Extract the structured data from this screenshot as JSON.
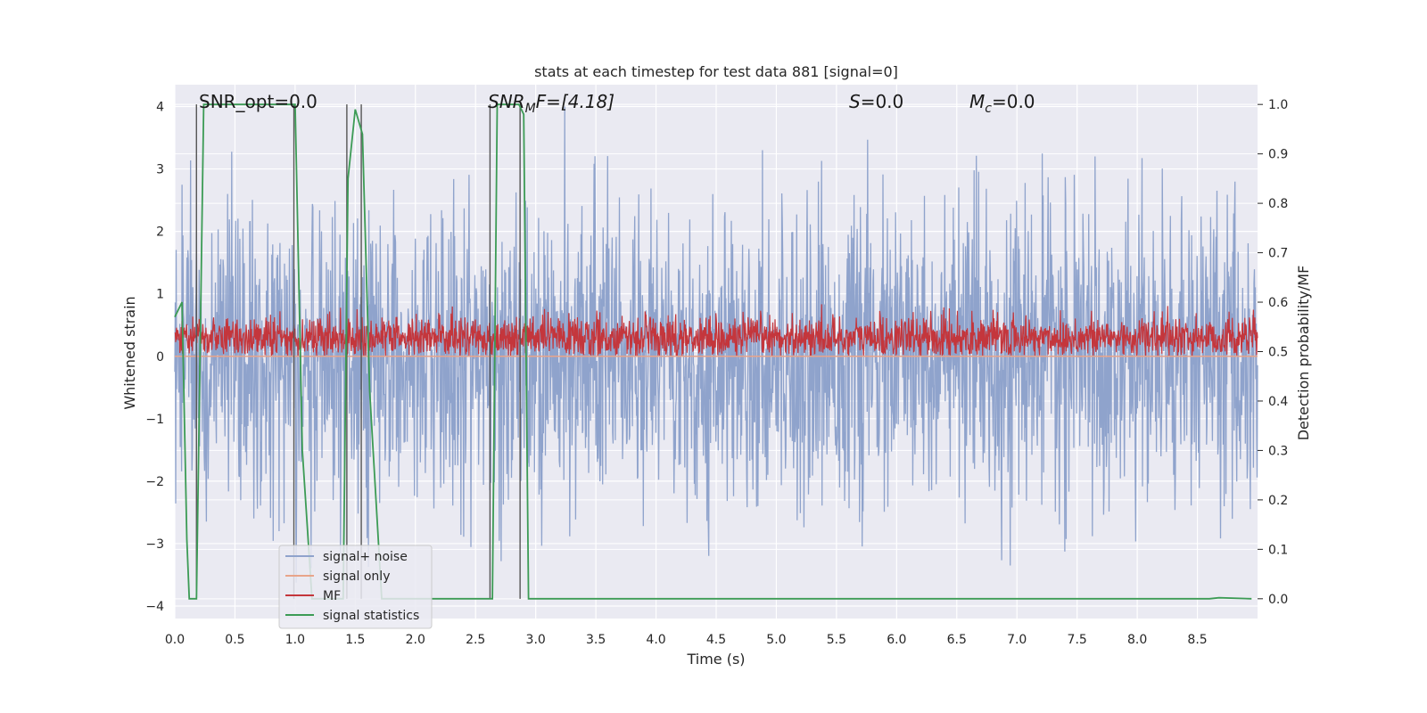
{
  "chart_data": {
    "type": "line",
    "title": "stats at each timestep for test data 881 [signal=0]",
    "xlabel": "Time (s)",
    "ylabel": "Whitened strain",
    "y2label": "Detection probability/MF",
    "xlim": [
      0.0,
      9.0
    ],
    "ylim": [
      -4.2,
      4.35
    ],
    "y2lim": [
      -0.04,
      1.04
    ],
    "xticks": [
      "0.0",
      "0.5",
      "1.0",
      "1.5",
      "2.0",
      "2.5",
      "3.0",
      "3.5",
      "4.0",
      "4.5",
      "5.0",
      "5.5",
      "6.0",
      "6.5",
      "7.0",
      "7.5",
      "8.0",
      "8.5"
    ],
    "xtick_values": [
      0.0,
      0.5,
      1.0,
      1.5,
      2.0,
      2.5,
      3.0,
      3.5,
      4.0,
      4.5,
      5.0,
      5.5,
      6.0,
      6.5,
      7.0,
      7.5,
      8.0,
      8.5
    ],
    "yticks": [
      "4",
      "3",
      "2",
      "1",
      "0",
      "−1",
      "−2",
      "−3",
      "−4"
    ],
    "ytick_values": [
      4,
      3,
      2,
      1,
      0,
      -1,
      -2,
      -3,
      -4
    ],
    "y2ticks": [
      "1.0",
      "0.9",
      "0.8",
      "0.7",
      "0.6",
      "0.5",
      "0.4",
      "0.3",
      "0.2",
      "0.1",
      "0.0"
    ],
    "y2tick_values": [
      1.0,
      0.9,
      0.8,
      0.7,
      0.6,
      0.5,
      0.4,
      0.3,
      0.2,
      0.1,
      0.0
    ],
    "grid": true,
    "legend_placement": "lower-left",
    "annotations": {
      "snr_opt": "SNR_opt=0.0",
      "snr_mf_label": "SNR",
      "snr_mf_sub": "M",
      "snr_mf_rest": "F=[4.18]",
      "s_label": "S",
      "s_rest": "=0.0",
      "mc_label": "M",
      "mc_sub": "c",
      "mc_rest": "=0.0"
    },
    "series": [
      {
        "name": "signal+ noise",
        "color": "#8fa3cc",
        "kind": "noise",
        "typical_amplitude": 1.15,
        "peak_amplitude": 4.0,
        "axis": "left"
      },
      {
        "name": "signal only",
        "color": "#e8a48a",
        "values_x": [
          0.0,
          9.0
        ],
        "values_y": [
          0.0,
          0.0
        ],
        "axis": "left"
      },
      {
        "name": "MF",
        "color": "#c4363c",
        "kind": "noise-positive",
        "typical_level": 0.3,
        "peak_level": 0.98,
        "axis": "left"
      },
      {
        "name": "signal statistics",
        "color": "#3c9b55",
        "axis": "right",
        "x": [
          0.0,
          0.06,
          0.1,
          0.12,
          0.18,
          0.24,
          0.26,
          0.98,
          1.0,
          1.06,
          1.14,
          1.4,
          1.44,
          1.5,
          1.56,
          1.62,
          1.72,
          2.62,
          2.64,
          2.68,
          2.86,
          2.9,
          2.94,
          8.6,
          8.68,
          8.95
        ],
        "y": [
          0.57,
          0.6,
          0.12,
          0.0,
          0.0,
          1.0,
          1.0,
          1.0,
          1.0,
          0.3,
          0.0,
          0.0,
          0.85,
          0.99,
          0.94,
          0.42,
          0.0,
          0.0,
          0.0,
          1.0,
          1.0,
          0.98,
          0.0,
          0.0,
          0.002,
          0.0
        ]
      }
    ],
    "vlines": [
      0.18,
      0.99,
      1.43,
      1.55,
      2.62,
      2.87
    ],
    "vline_color": "#555555"
  }
}
